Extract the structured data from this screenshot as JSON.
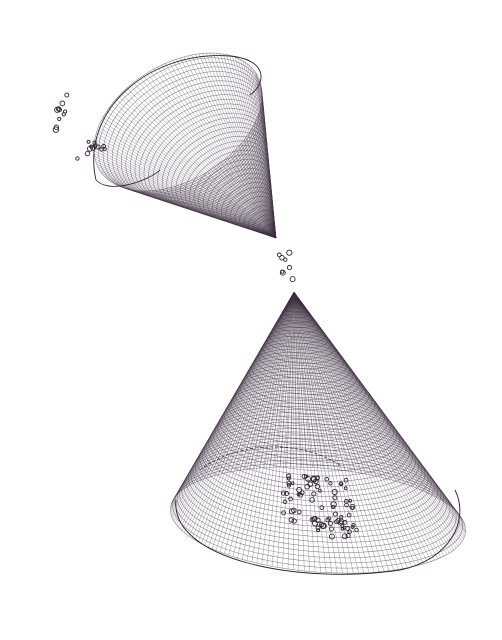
{
  "artwork": {
    "subject": "two-opposed-line-cones",
    "background_color": "#ffffff",
    "ink_color": "#3a2b3d",
    "shade_color": "#4a3a4f",
    "curve_color": "#2a1d2c",
    "bubble_color": "#2f2432"
  }
}
